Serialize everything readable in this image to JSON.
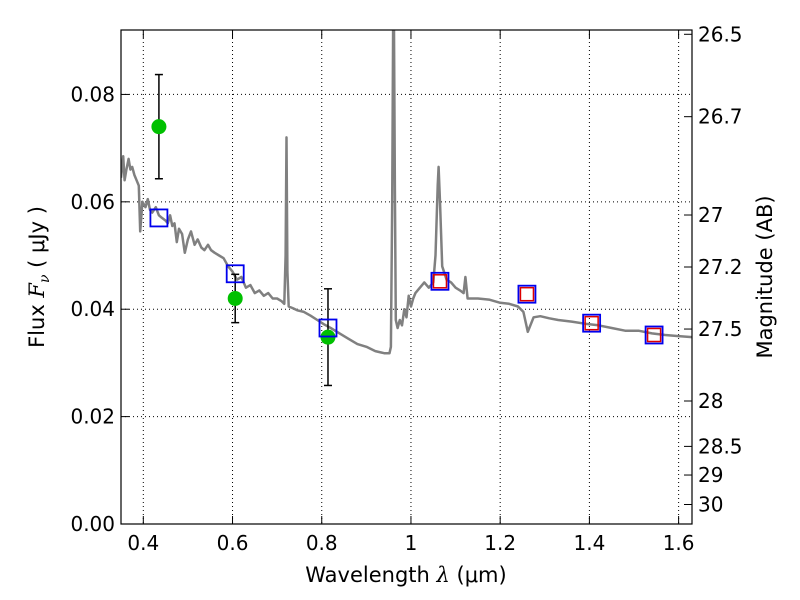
{
  "chart_data": {
    "type": "scatter",
    "xlabel": {
      "prefix": "Wavelength  ",
      "symbol": "λ",
      "suffix": " (μm)"
    },
    "ylabel": {
      "prefix": "Flux  ",
      "symbol": "F",
      "subscript": "ν",
      "suffix": "  ( μJy )"
    },
    "y2label": "Magnitude (AB)",
    "xlim": [
      0.35,
      1.63
    ],
    "ylim": [
      0.0,
      0.092
    ],
    "grid": true,
    "x_ticks": [
      {
        "value": 0.4,
        "label": "0.4"
      },
      {
        "value": 0.6,
        "label": "0.6"
      },
      {
        "value": 0.8,
        "label": "0.8"
      },
      {
        "value": 1.0,
        "label": "1"
      },
      {
        "value": 1.2,
        "label": "1.2"
      },
      {
        "value": 1.4,
        "label": "1.4"
      },
      {
        "value": 1.6,
        "label": "1.6"
      }
    ],
    "y_ticks": [
      {
        "value": 0.0,
        "label": "0.00"
      },
      {
        "value": 0.02,
        "label": "0.02"
      },
      {
        "value": 0.04,
        "label": "0.04"
      },
      {
        "value": 0.06,
        "label": "0.06"
      },
      {
        "value": 0.08,
        "label": "0.08"
      }
    ],
    "y2_ticks": [
      {
        "mag": 26.5,
        "label": "26.5"
      },
      {
        "mag": 26.7,
        "label": "26.7"
      },
      {
        "mag": 27.0,
        "label": "27"
      },
      {
        "mag": 27.2,
        "label": "27.2"
      },
      {
        "mag": 27.5,
        "label": "27.5"
      },
      {
        "mag": 28.0,
        "label": "28"
      },
      {
        "mag": 28.5,
        "label": "28.5"
      },
      {
        "mag": 29.0,
        "label": "29"
      },
      {
        "mag": 30.0,
        "label": "30"
      }
    ],
    "model_spectrum": {
      "color": "#808080",
      "points": [
        [
          0.35,
          0.0645
        ],
        [
          0.355,
          0.0685
        ],
        [
          0.358,
          0.064
        ],
        [
          0.362,
          0.066
        ],
        [
          0.367,
          0.068
        ],
        [
          0.371,
          0.066
        ],
        [
          0.375,
          0.0665
        ],
        [
          0.38,
          0.065
        ],
        [
          0.385,
          0.064
        ],
        [
          0.39,
          0.063
        ],
        [
          0.393,
          0.0545
        ],
        [
          0.398,
          0.06
        ],
        [
          0.405,
          0.059
        ],
        [
          0.41,
          0.0605
        ],
        [
          0.415,
          0.0585
        ],
        [
          0.42,
          0.058
        ],
        [
          0.428,
          0.059
        ],
        [
          0.435,
          0.0575
        ],
        [
          0.442,
          0.057
        ],
        [
          0.45,
          0.0565
        ],
        [
          0.455,
          0.056
        ],
        [
          0.46,
          0.0575
        ],
        [
          0.465,
          0.0555
        ],
        [
          0.47,
          0.056
        ],
        [
          0.475,
          0.0525
        ],
        [
          0.48,
          0.055
        ],
        [
          0.487,
          0.054
        ],
        [
          0.493,
          0.0505
        ],
        [
          0.5,
          0.053
        ],
        [
          0.507,
          0.0545
        ],
        [
          0.515,
          0.052
        ],
        [
          0.522,
          0.053
        ],
        [
          0.53,
          0.0515
        ],
        [
          0.537,
          0.051
        ],
        [
          0.545,
          0.052
        ],
        [
          0.552,
          0.051
        ],
        [
          0.56,
          0.0505
        ],
        [
          0.57,
          0.05
        ],
        [
          0.58,
          0.0495
        ],
        [
          0.59,
          0.048
        ],
        [
          0.6,
          0.047
        ],
        [
          0.61,
          0.0455
        ],
        [
          0.62,
          0.046
        ],
        [
          0.63,
          0.044
        ],
        [
          0.64,
          0.0445
        ],
        [
          0.65,
          0.043
        ],
        [
          0.66,
          0.0435
        ],
        [
          0.67,
          0.0425
        ],
        [
          0.68,
          0.043
        ],
        [
          0.69,
          0.042
        ],
        [
          0.7,
          0.042
        ],
        [
          0.71,
          0.0415
        ],
        [
          0.716,
          0.041
        ],
        [
          0.719,
          0.05
        ],
        [
          0.721,
          0.072
        ],
        [
          0.723,
          0.047
        ],
        [
          0.726,
          0.0405
        ],
        [
          0.735,
          0.0402
        ],
        [
          0.745,
          0.0398
        ],
        [
          0.76,
          0.0395
        ],
        [
          0.775,
          0.0388
        ],
        [
          0.79,
          0.038
        ],
        [
          0.805,
          0.0372
        ],
        [
          0.82,
          0.0365
        ],
        [
          0.84,
          0.0355
        ],
        [
          0.86,
          0.0345
        ],
        [
          0.88,
          0.0335
        ],
        [
          0.9,
          0.033
        ],
        [
          0.92,
          0.0322
        ],
        [
          0.94,
          0.0318
        ],
        [
          0.952,
          0.0318
        ],
        [
          0.955,
          0.033
        ],
        [
          0.958,
          0.06
        ],
        [
          0.96,
          0.092
        ],
        [
          0.962,
          0.092
        ],
        [
          0.964,
          0.062
        ],
        [
          0.966,
          0.038
        ],
        [
          0.97,
          0.0365
        ],
        [
          0.975,
          0.038
        ],
        [
          0.98,
          0.037
        ],
        [
          0.985,
          0.04
        ],
        [
          0.99,
          0.0385
        ],
        [
          0.995,
          0.0425
        ],
        [
          1.0,
          0.0405
        ],
        [
          1.005,
          0.042
        ],
        [
          1.01,
          0.043
        ],
        [
          1.02,
          0.044
        ],
        [
          1.03,
          0.045
        ],
        [
          1.04,
          0.044
        ],
        [
          1.05,
          0.045
        ],
        [
          1.055,
          0.05
        ],
        [
          1.06,
          0.063
        ],
        [
          1.062,
          0.0665
        ],
        [
          1.065,
          0.06
        ],
        [
          1.07,
          0.048
        ],
        [
          1.08,
          0.0455
        ],
        [
          1.09,
          0.045
        ],
        [
          1.1,
          0.044
        ],
        [
          1.11,
          0.0435
        ],
        [
          1.118,
          0.043
        ],
        [
          1.122,
          0.046
        ],
        [
          1.127,
          0.042
        ],
        [
          1.15,
          0.042
        ],
        [
          1.175,
          0.0418
        ],
        [
          1.2,
          0.0412
        ],
        [
          1.22,
          0.041
        ],
        [
          1.24,
          0.0405
        ],
        [
          1.252,
          0.0395
        ],
        [
          1.262,
          0.0358
        ],
        [
          1.275,
          0.0385
        ],
        [
          1.29,
          0.0387
        ],
        [
          1.31,
          0.0383
        ],
        [
          1.33,
          0.038
        ],
        [
          1.36,
          0.0377
        ],
        [
          1.39,
          0.0373
        ],
        [
          1.42,
          0.037
        ],
        [
          1.45,
          0.0365
        ],
        [
          1.48,
          0.036
        ],
        [
          1.51,
          0.036
        ],
        [
          1.54,
          0.0355
        ],
        [
          1.57,
          0.0352
        ],
        [
          1.6,
          0.035
        ],
        [
          1.63,
          0.0348
        ]
      ]
    },
    "observed": {
      "color": "#00c000",
      "points": [
        {
          "x": 0.435,
          "y": 0.074,
          "yerr": 0.0097
        },
        {
          "x": 0.606,
          "y": 0.042,
          "yerr": 0.0045
        },
        {
          "x": 0.814,
          "y": 0.0348,
          "yerr": 0.009
        }
      ]
    },
    "model_photometry_blue": {
      "color": "#0000ee",
      "points": [
        [
          0.435,
          0.057
        ],
        [
          0.606,
          0.0466
        ],
        [
          0.814,
          0.0365
        ],
        [
          1.065,
          0.0452
        ],
        [
          1.26,
          0.0428
        ],
        [
          1.405,
          0.0374
        ],
        [
          1.545,
          0.0352
        ]
      ]
    },
    "model_photometry_red": {
      "color": "#dd0000",
      "points": [
        [
          1.065,
          0.0452
        ],
        [
          1.26,
          0.0428
        ],
        [
          1.405,
          0.0374
        ],
        [
          1.545,
          0.0352
        ]
      ]
    }
  }
}
